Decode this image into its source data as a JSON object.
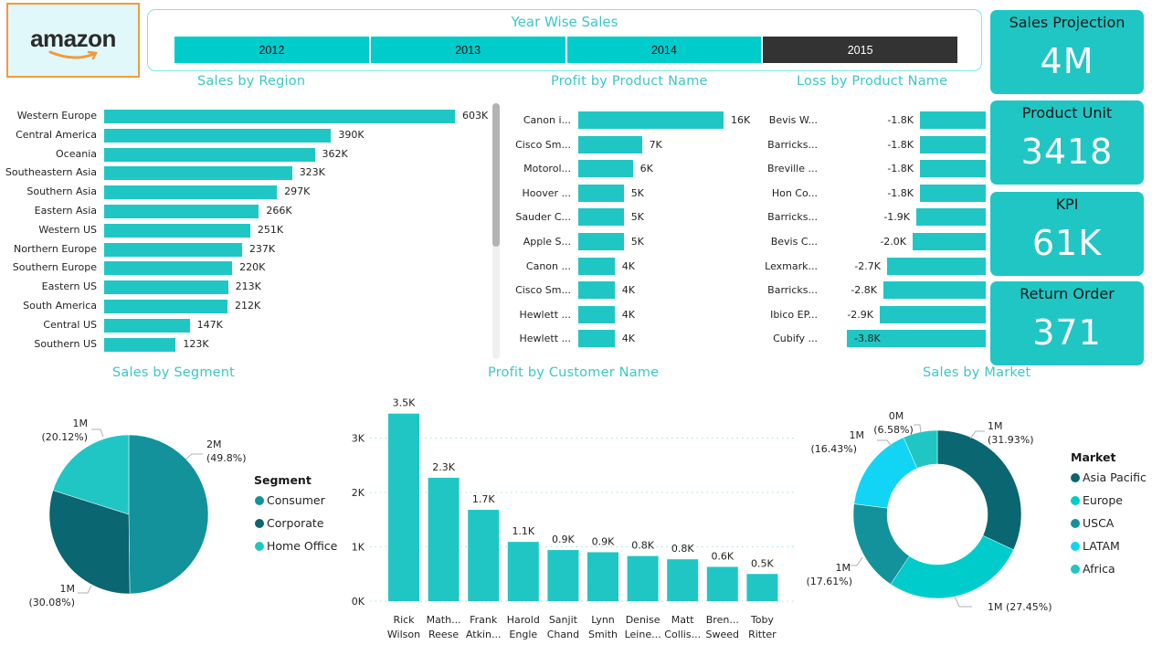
{
  "logo": {
    "text": "amazon"
  },
  "year_slicer": {
    "title": "Year Wise Sales",
    "years": [
      {
        "label": "2012",
        "selected": false
      },
      {
        "label": "2013",
        "selected": false
      },
      {
        "label": "2014",
        "selected": false
      },
      {
        "label": "2015",
        "selected": true
      }
    ]
  },
  "kpis": [
    {
      "label": "Sales Projection",
      "value": "4M"
    },
    {
      "label": "Product Unit",
      "value": "3418"
    },
    {
      "label": "KPI",
      "value": "61K"
    },
    {
      "label": "Return Order",
      "value": "371"
    }
  ],
  "colors": {
    "accent": "#20c6c4",
    "title": "#3ec6c6",
    "slicer": "#00cccc",
    "slicer_selected": "#333333",
    "logo_border": "#f39a3d"
  },
  "chart_data": [
    {
      "id": "sales_by_region",
      "type": "bar",
      "orientation": "horizontal",
      "title": "Sales by Region",
      "categories": [
        "Western Europe",
        "Central America",
        "Oceania",
        "Southeastern Asia",
        "Southern Asia",
        "Eastern Asia",
        "Western US",
        "Northern Europe",
        "Southern Europe",
        "Eastern US",
        "South America",
        "Central US",
        "Southern US"
      ],
      "values": [
        603000,
        390000,
        362000,
        323000,
        297000,
        266000,
        251000,
        237000,
        220000,
        213000,
        212000,
        147000,
        123000
      ],
      "data_labels": [
        "603K",
        "390K",
        "362K",
        "323K",
        "297K",
        "266K",
        "251K",
        "237K",
        "220K",
        "213K",
        "212K",
        "147K",
        "123K"
      ]
    },
    {
      "id": "profit_by_product",
      "type": "bar",
      "orientation": "horizontal",
      "title": "Profit by Product Name",
      "categories": [
        "Canon i...",
        "Cisco Sm...",
        "Motorol...",
        "Hoover ...",
        "Sauder C...",
        "Apple S...",
        "Canon ...",
        "Cisco Sm...",
        "Hewlett ...",
        "Hewlett ..."
      ],
      "values": [
        16000,
        7000,
        6000,
        5000,
        5000,
        5000,
        4000,
        4000,
        4000,
        4000
      ],
      "data_labels": [
        "16K",
        "7K",
        "6K",
        "5K",
        "5K",
        "5K",
        "4K",
        "4K",
        "4K",
        "4K"
      ]
    },
    {
      "id": "loss_by_product",
      "type": "bar",
      "orientation": "horizontal",
      "title": "Loss by Product Name",
      "categories": [
        "Bevis W...",
        "Barricks...",
        "Breville ...",
        "Hon Co...",
        "Barricks...",
        "Bevis C...",
        "Lexmark...",
        "Barricks...",
        "Ibico EP...",
        "Cubify ..."
      ],
      "values": [
        -1800,
        -1800,
        -1800,
        -1800,
        -1900,
        -2000,
        -2700,
        -2800,
        -2900,
        -3800
      ],
      "data_labels": [
        "-1.8K",
        "-1.8K",
        "-1.8K",
        "-1.8K",
        "-1.9K",
        "-2.0K",
        "-2.7K",
        "-2.8K",
        "-2.9K",
        "-3.8K"
      ]
    },
    {
      "id": "sales_by_segment",
      "type": "pie",
      "title": "Sales by Segment",
      "legend_title": "Segment",
      "legend_position": "right",
      "categories": [
        "Consumer",
        "Corporate",
        "Home Office"
      ],
      "values_pct": [
        49.8,
        30.08,
        20.12
      ],
      "data_labels": [
        "2M (49.8%)",
        "1M (30.08%)",
        "1M (20.12%)"
      ],
      "value_labels": [
        "2M",
        "1M",
        "1M"
      ],
      "pct_labels": [
        "(49.8%)",
        "(30.08%)",
        "(20.12%)"
      ],
      "colors": [
        "#118dff",
        "#12239e",
        "#e66c37"
      ],
      "slice_colors": [
        "#13929b",
        "#0a6670",
        "#20c6c4"
      ]
    },
    {
      "id": "profit_by_customer",
      "type": "bar",
      "orientation": "vertical",
      "title": "Profit by Customer Name",
      "categories": [
        [
          "Rick",
          "Wilson"
        ],
        [
          "Math...",
          "Reese"
        ],
        [
          "Frank",
          "Atkin..."
        ],
        [
          "Harold",
          "Engle"
        ],
        [
          "Sanjit",
          "Chand"
        ],
        [
          "Lynn",
          "Smith"
        ],
        [
          "Denise",
          "Leine..."
        ],
        [
          "Matt",
          "Collis..."
        ],
        [
          "Bren...",
          "Sweed"
        ],
        [
          "Toby",
          "Ritter"
        ]
      ],
      "values": [
        3450,
        2270,
        1680,
        1090,
        940,
        900,
        830,
        770,
        630,
        500
      ],
      "data_labels": [
        "3.5K",
        "2.3K",
        "1.7K",
        "1.1K",
        "0.9K",
        "0.9K",
        "0.8K",
        "0.8K",
        "0.6K",
        "0.5K"
      ],
      "yticks": [
        "0K",
        "1K",
        "2K",
        "3K"
      ],
      "ylim": [
        0,
        3500
      ],
      "grid": true
    },
    {
      "id": "sales_by_market",
      "type": "pie",
      "subtype": "donut",
      "title": "Sales by Market",
      "legend_title": "Market",
      "legend_position": "right",
      "categories": [
        "Asia Pacific",
        "Europe",
        "USCA",
        "LATAM",
        "Africa"
      ],
      "values_pct": [
        31.93,
        27.45,
        17.61,
        16.43,
        6.58
      ],
      "value_labels": [
        "1M",
        "1M",
        "1M",
        "1M",
        "0M"
      ],
      "pct_labels": [
        "(31.93%)",
        "(27.45%)",
        "(17.61%)",
        "(16.43%)",
        "(6.58%)"
      ],
      "slice_colors": [
        "#0a6670",
        "#00cccc",
        "#13929b",
        "#12d4f5",
        "#20c6c4"
      ]
    }
  ]
}
